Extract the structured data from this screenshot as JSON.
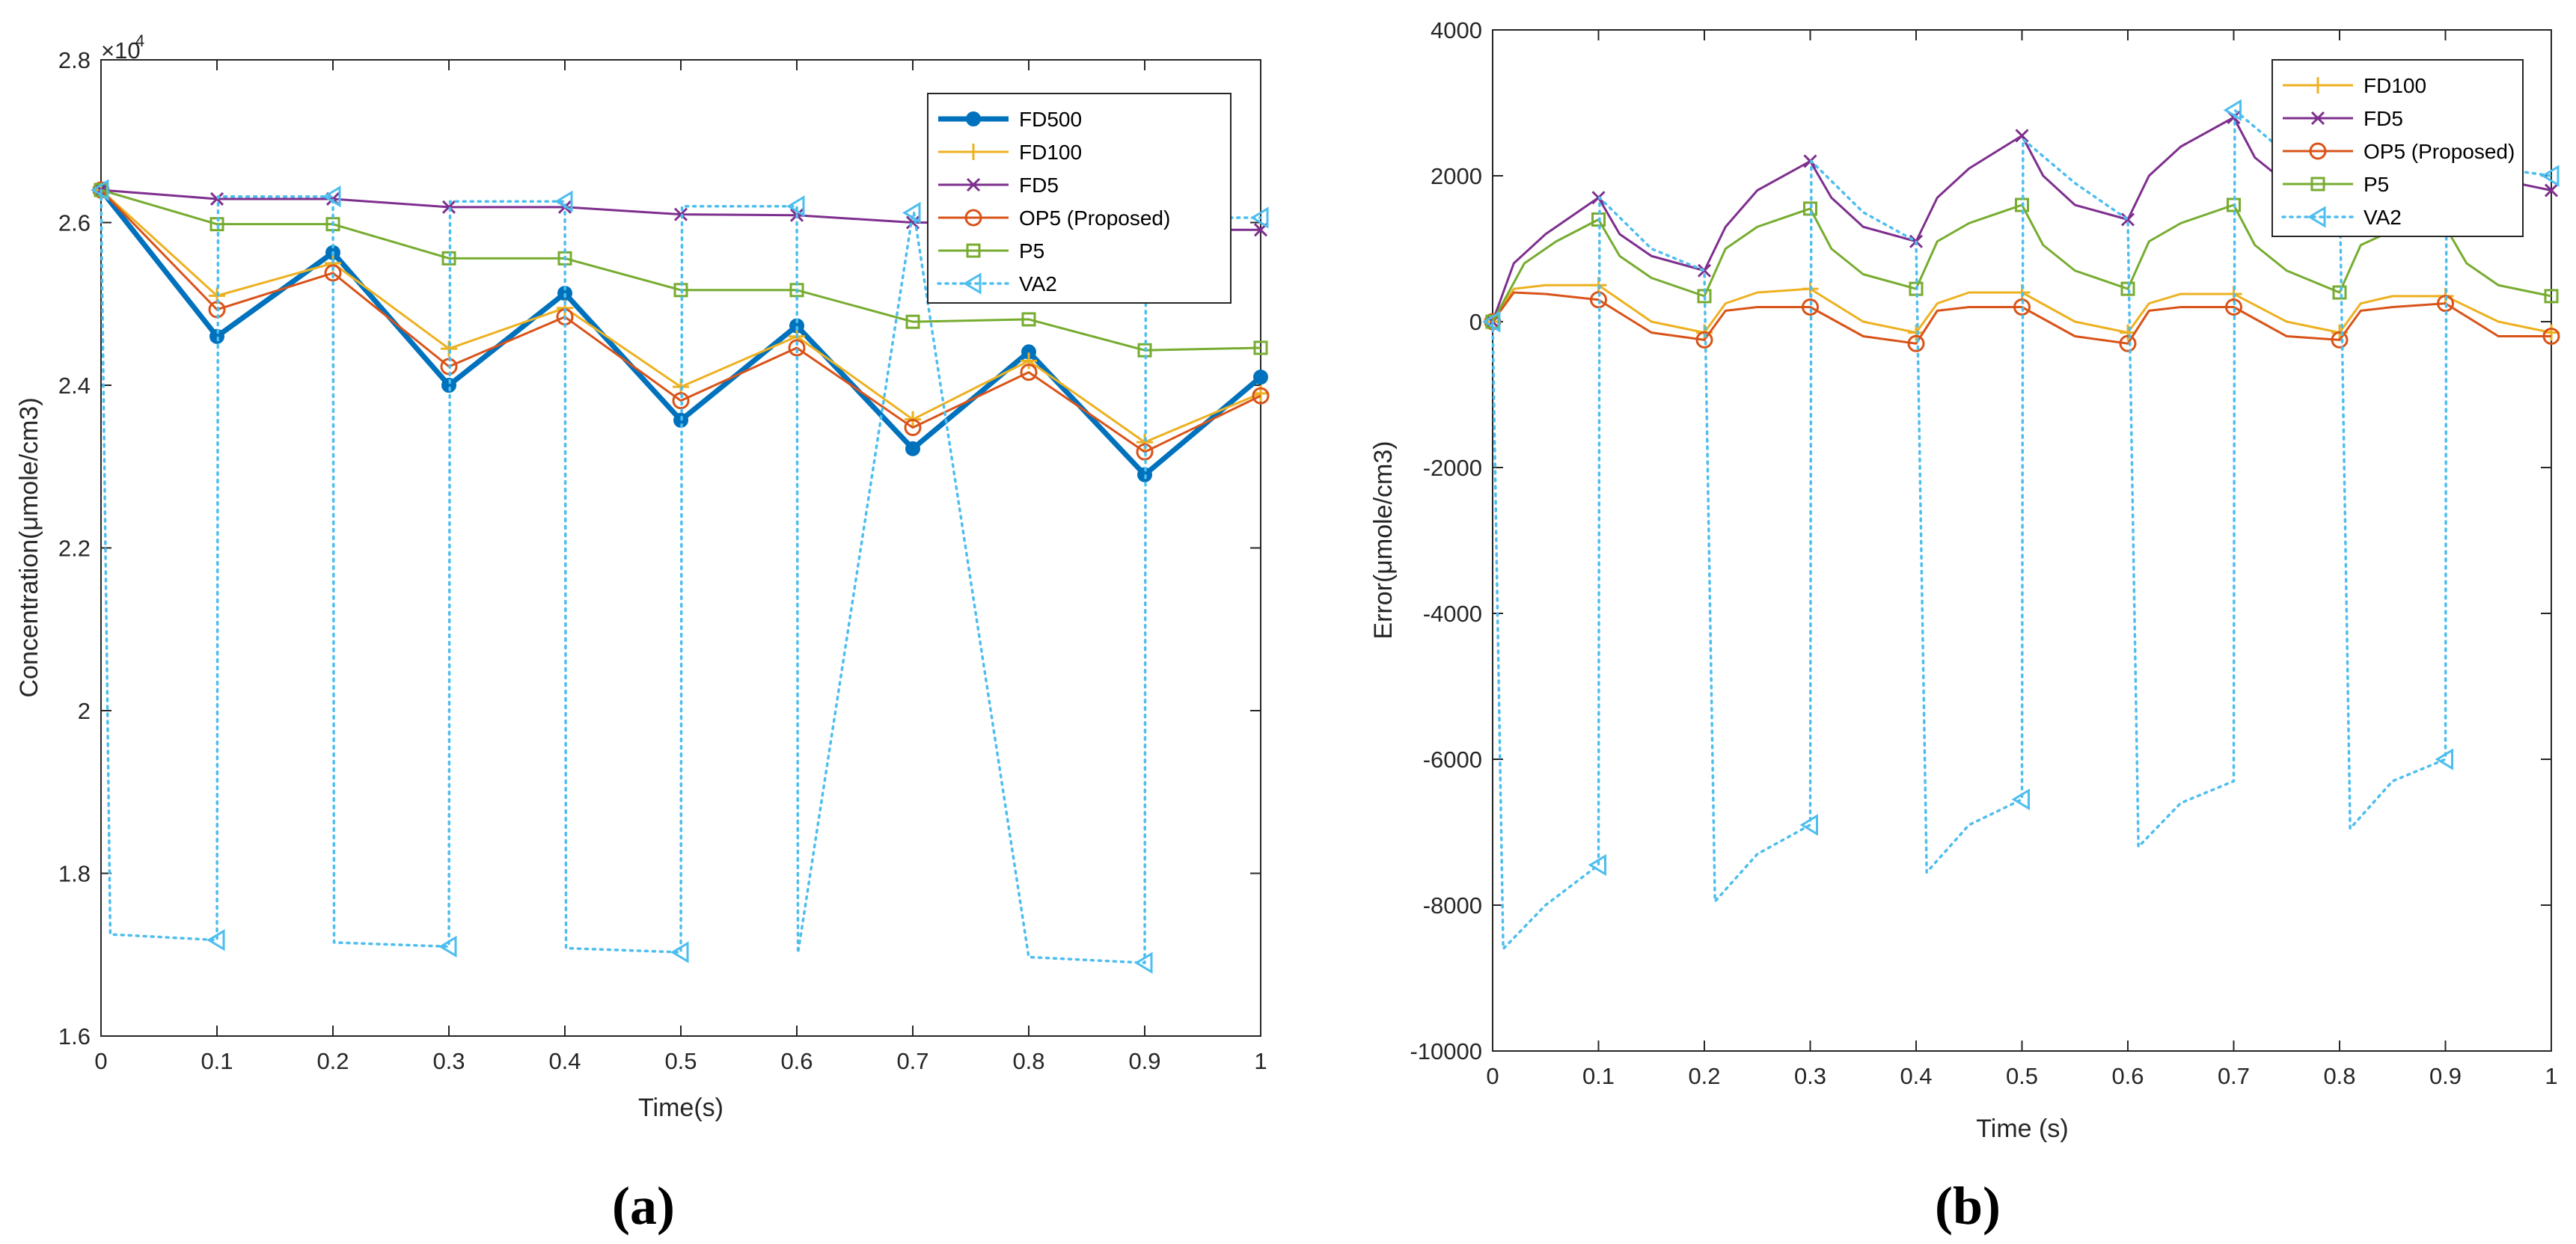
{
  "chart_data": [
    {
      "type": "line",
      "caption": "(a)",
      "xlabel": "Time(s)",
      "ylabel": "Concentration(μmole/cm3)",
      "y_multiplier": "×10",
      "y_multiplier_exp": "4",
      "xlim": [
        0,
        1
      ],
      "ylim": [
        1.6,
        2.8
      ],
      "xticks": [
        "0",
        "0.1",
        "0.2",
        "0.3",
        "0.4",
        "0.5",
        "0.6",
        "0.7",
        "0.8",
        "0.9",
        "1"
      ],
      "yticks": [
        "1.6",
        "1.8",
        "2",
        "2.2",
        "2.4",
        "2.6",
        "2.8"
      ],
      "grid": false,
      "legend_position": "top-right",
      "series": [
        {
          "name": "FD500",
          "color": "#0072BD",
          "marker": "dot",
          "style": "solid-thick",
          "x": [
            0,
            0.1,
            0.2,
            0.3,
            0.4,
            0.5,
            0.6,
            0.7,
            0.8,
            0.9,
            1.0
          ],
          "y": [
            2.64,
            2.46,
            2.563,
            2.4,
            2.513,
            2.357,
            2.473,
            2.322,
            2.441,
            2.29,
            2.41
          ]
        },
        {
          "name": "FD100",
          "color": "#EDB120",
          "marker": "plus",
          "style": "solid",
          "x": [
            0,
            0.1,
            0.2,
            0.3,
            0.4,
            0.5,
            0.6,
            0.7,
            0.8,
            0.9,
            1.0
          ],
          "y": [
            2.64,
            2.51,
            2.55,
            2.445,
            2.495,
            2.398,
            2.46,
            2.358,
            2.43,
            2.33,
            2.39
          ]
        },
        {
          "name": "FD5",
          "color": "#7E2F8E",
          "marker": "x",
          "style": "solid",
          "x": [
            0,
            0.1,
            0.2,
            0.3,
            0.4,
            0.5,
            0.6,
            0.7,
            0.8,
            0.9,
            1.0
          ],
          "y": [
            2.64,
            2.629,
            2.629,
            2.619,
            2.619,
            2.61,
            2.609,
            2.6,
            2.6,
            2.591,
            2.591
          ]
        },
        {
          "name": "OP5 (Proposed)",
          "color": "#D95319",
          "marker": "circle",
          "style": "solid",
          "x": [
            0,
            0.1,
            0.2,
            0.3,
            0.4,
            0.5,
            0.6,
            0.7,
            0.8,
            0.9,
            1.0
          ],
          "y": [
            2.64,
            2.493,
            2.538,
            2.423,
            2.484,
            2.381,
            2.446,
            2.348,
            2.416,
            2.318,
            2.387
          ]
        },
        {
          "name": "P5",
          "color": "#77AC30",
          "marker": "square",
          "style": "solid",
          "x": [
            0,
            0.1,
            0.2,
            0.3,
            0.4,
            0.5,
            0.6,
            0.7,
            0.8,
            0.9,
            1.0
          ],
          "y": [
            2.64,
            2.598,
            2.598,
            2.556,
            2.556,
            2.517,
            2.517,
            2.478,
            2.481,
            2.443,
            2.446
          ]
        },
        {
          "name": "VA2",
          "color": "#4DBEEE",
          "marker": "triangle-left",
          "style": "dotted",
          "x": [
            0,
            0.008,
            0.1,
            0.101,
            0.2,
            0.201,
            0.3,
            0.301,
            0.4,
            0.401,
            0.5,
            0.501,
            0.6,
            0.601,
            0.7,
            0.701,
            0.8,
            0.801,
            0.9,
            0.901,
            1.0
          ],
          "y": [
            2.64,
            1.725,
            1.718,
            2.632,
            2.632,
            1.715,
            1.71,
            2.626,
            2.626,
            1.708,
            1.703,
            2.62,
            2.62,
            1.702,
            2.612,
            2.612,
            1.697,
            1.697,
            1.69,
            2.606,
            2.606
          ],
          "marker_x": [
            0,
            0.1,
            0.2,
            0.3,
            0.4,
            0.5,
            0.6,
            0.7,
            0.9,
            1.0
          ],
          "marker_y": [
            2.64,
            1.718,
            2.632,
            1.71,
            2.626,
            1.703,
            2.62,
            2.612,
            1.69,
            2.606
          ]
        }
      ]
    },
    {
      "type": "line",
      "caption": "(b)",
      "xlabel": "Time (s)",
      "ylabel": "Error(μmole/cm3)",
      "xlim": [
        0,
        1
      ],
      "ylim": [
        -10000,
        4000
      ],
      "xticks": [
        "0",
        "0.1",
        "0.2",
        "0.3",
        "0.4",
        "0.5",
        "0.6",
        "0.7",
        "0.8",
        "0.9",
        "1"
      ],
      "yticks": [
        "-10000",
        "-8000",
        "-6000",
        "-4000",
        "-2000",
        "0",
        "2000",
        "4000"
      ],
      "grid": false,
      "legend_position": "top-right",
      "series": [
        {
          "name": "FD100",
          "color": "#EDB120",
          "marker": "plus",
          "x": [
            0,
            0.02,
            0.05,
            0.1,
            0.15,
            0.2,
            0.22,
            0.25,
            0.3,
            0.35,
            0.4,
            0.42,
            0.45,
            0.5,
            0.55,
            0.6,
            0.62,
            0.65,
            0.7,
            0.75,
            0.8,
            0.82,
            0.85,
            0.9,
            0.95,
            1.0
          ],
          "y": [
            0,
            450,
            500,
            500,
            0,
            -150,
            250,
            400,
            450,
            0,
            -150,
            250,
            400,
            400,
            0,
            -150,
            250,
            380,
            380,
            0,
            -150,
            250,
            350,
            350,
            0,
            -150
          ],
          "marker_x": [
            0,
            0.1,
            0.2,
            0.3,
            0.4,
            0.5,
            0.6,
            0.7,
            0.8,
            0.9,
            1.0
          ],
          "marker_y": [
            0,
            500,
            -150,
            450,
            -150,
            400,
            -150,
            380,
            -150,
            350,
            -150
          ]
        },
        {
          "name": "FD5",
          "color": "#7E2F8E",
          "marker": "x",
          "x": [
            0,
            0.02,
            0.05,
            0.1,
            0.12,
            0.15,
            0.2,
            0.22,
            0.25,
            0.3,
            0.32,
            0.35,
            0.4,
            0.42,
            0.45,
            0.5,
            0.52,
            0.55,
            0.6,
            0.62,
            0.65,
            0.7,
            0.72,
            0.75,
            0.8,
            0.82,
            0.85,
            0.9,
            0.92,
            0.95,
            1.0
          ],
          "y": [
            0,
            800,
            1200,
            1700,
            1200,
            900,
            700,
            1300,
            1800,
            2200,
            1700,
            1300,
            1100,
            1700,
            2100,
            2550,
            2000,
            1600,
            1400,
            2000,
            2400,
            2800,
            2250,
            1900,
            1700,
            2150,
            2400,
            2600,
            2200,
            1950,
            1800
          ],
          "marker_x": [
            0,
            0.1,
            0.2,
            0.3,
            0.4,
            0.5,
            0.6,
            0.7,
            0.9,
            1.0
          ],
          "marker_y": [
            0,
            1700,
            700,
            2200,
            1100,
            2550,
            1400,
            2800,
            2600,
            1800
          ]
        },
        {
          "name": "OP5 (Proposed)",
          "color": "#D95319",
          "marker": "circle",
          "x": [
            0,
            0.02,
            0.05,
            0.1,
            0.15,
            0.2,
            0.22,
            0.25,
            0.3,
            0.35,
            0.4,
            0.42,
            0.45,
            0.5,
            0.55,
            0.6,
            0.62,
            0.65,
            0.7,
            0.75,
            0.8,
            0.82,
            0.85,
            0.9,
            0.95,
            1.0
          ],
          "y": [
            0,
            400,
            380,
            300,
            -150,
            -250,
            150,
            200,
            200,
            -200,
            -300,
            150,
            200,
            200,
            -200,
            -300,
            150,
            200,
            200,
            -200,
            -250,
            150,
            200,
            250,
            -200,
            -200
          ],
          "marker_x": [
            0,
            0.1,
            0.2,
            0.3,
            0.4,
            0.5,
            0.6,
            0.7,
            0.8,
            0.9,
            1.0
          ],
          "marker_y": [
            0,
            300,
            -250,
            200,
            -300,
            200,
            -300,
            200,
            -250,
            250,
            -200
          ]
        },
        {
          "name": "P5",
          "color": "#77AC30",
          "marker": "square",
          "x": [
            0,
            0.03,
            0.06,
            0.1,
            0.12,
            0.15,
            0.2,
            0.22,
            0.25,
            0.3,
            0.32,
            0.35,
            0.4,
            0.42,
            0.45,
            0.5,
            0.52,
            0.55,
            0.6,
            0.62,
            0.65,
            0.7,
            0.72,
            0.75,
            0.8,
            0.82,
            0.85,
            0.9,
            0.92,
            0.95,
            1.0
          ],
          "y": [
            0,
            800,
            1100,
            1400,
            900,
            600,
            350,
            1000,
            1300,
            1550,
            1000,
            650,
            450,
            1100,
            1350,
            1600,
            1050,
            700,
            450,
            1100,
            1350,
            1600,
            1050,
            700,
            400,
            1050,
            1250,
            1300,
            800,
            500,
            350
          ],
          "marker_x": [
            0,
            0.1,
            0.2,
            0.3,
            0.4,
            0.5,
            0.6,
            0.7,
            0.8,
            1.0
          ],
          "marker_y": [
            0,
            1400,
            350,
            1550,
            450,
            1600,
            450,
            1600,
            400,
            350
          ]
        },
        {
          "name": "VA2",
          "color": "#4DBEEE",
          "marker": "triangle-left",
          "x": [
            0,
            0.01,
            0.05,
            0.1,
            0.101,
            0.15,
            0.2,
            0.21,
            0.25,
            0.3,
            0.301,
            0.35,
            0.4,
            0.41,
            0.45,
            0.5,
            0.501,
            0.55,
            0.6,
            0.61,
            0.65,
            0.7,
            0.701,
            0.75,
            0.8,
            0.81,
            0.85,
            0.9,
            0.901,
            0.95,
            1.0
          ],
          "y": [
            0,
            -8600,
            -8000,
            -7450,
            1700,
            1000,
            700,
            -7950,
            -7300,
            -6900,
            2200,
            1500,
            1100,
            -7550,
            -6900,
            -6550,
            2500,
            1900,
            1400,
            -7200,
            -6600,
            -6300,
            2900,
            2300,
            1900,
            -6950,
            -6300,
            -6000,
            2500,
            2100,
            2000
          ],
          "marker_x": [
            0,
            0.1,
            0.3,
            0.5,
            0.7,
            0.9,
            1.0
          ],
          "marker_y": [
            0,
            -7450,
            -6900,
            -6550,
            2900,
            -6000,
            2000
          ]
        }
      ]
    }
  ]
}
